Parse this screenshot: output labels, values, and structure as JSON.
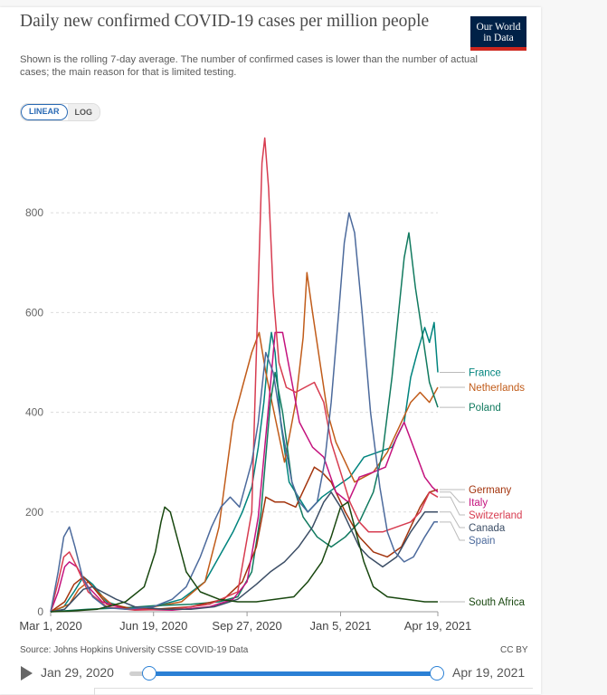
{
  "header": {
    "title": "Daily new confirmed COVID-19 cases per million people",
    "subtitle": "Shown is the rolling 7-day average. The number of confirmed cases is lower than the number of actual cases; the main reason for that is limited testing.",
    "logo_line1": "Our World",
    "logo_line2": "in Data"
  },
  "controls": {
    "linear_label": "LINEAR",
    "log_label": "LOG"
  },
  "footer": {
    "source": "Source: Johns Hopkins University CSSE COVID-19 Data",
    "license": "CC BY"
  },
  "timeline": {
    "start_label": "Jan 29, 2020",
    "end_label": "Apr 19, 2021",
    "range_start_fraction": 0.07,
    "range_end_fraction": 1.0
  },
  "colors": {
    "accent": "#2b80d5",
    "logo_bg": "#002147",
    "logo_bar": "#ce261e"
  },
  "chart_data": {
    "type": "line",
    "x_tick_labels": [
      "Mar 1, 2020",
      "Jun 19, 2020",
      "Sep 27, 2020",
      "Jan 5, 2021",
      "Apr 19, 2021"
    ],
    "x_tick_days": [
      0,
      110,
      210,
      310,
      414
    ],
    "y_tick_labels": [
      "0",
      "200",
      "400",
      "600",
      "800"
    ],
    "ylim": [
      0,
      960
    ],
    "xlim": [
      0,
      414
    ],
    "series": [
      {
        "name": "France",
        "color": "#00847e",
        "label_value": 480,
        "points": [
          [
            0,
            0
          ],
          [
            14,
            10
          ],
          [
            25,
            40
          ],
          [
            35,
            70
          ],
          [
            45,
            55
          ],
          [
            60,
            20
          ],
          [
            80,
            8
          ],
          [
            110,
            10
          ],
          [
            140,
            25
          ],
          [
            165,
            60
          ],
          [
            180,
            110
          ],
          [
            195,
            160
          ],
          [
            205,
            200
          ],
          [
            215,
            250
          ],
          [
            222,
            330
          ],
          [
            228,
            420
          ],
          [
            232,
            500
          ],
          [
            236,
            560
          ],
          [
            240,
            520
          ],
          [
            246,
            380
          ],
          [
            255,
            260
          ],
          [
            265,
            230
          ],
          [
            275,
            200
          ],
          [
            290,
            230
          ],
          [
            305,
            250
          ],
          [
            320,
            270
          ],
          [
            335,
            310
          ],
          [
            350,
            320
          ],
          [
            365,
            330
          ],
          [
            378,
            380
          ],
          [
            385,
            470
          ],
          [
            392,
            520
          ],
          [
            400,
            570
          ],
          [
            405,
            540
          ],
          [
            410,
            580
          ],
          [
            414,
            480
          ]
        ]
      },
      {
        "name": "Netherlands",
        "color": "#c15c1a",
        "label_value": 450,
        "points": [
          [
            0,
            0
          ],
          [
            20,
            15
          ],
          [
            30,
            45
          ],
          [
            40,
            60
          ],
          [
            50,
            40
          ],
          [
            65,
            15
          ],
          [
            90,
            5
          ],
          [
            110,
            10
          ],
          [
            140,
            20
          ],
          [
            165,
            60
          ],
          [
            180,
            170
          ],
          [
            195,
            380
          ],
          [
            205,
            450
          ],
          [
            215,
            520
          ],
          [
            223,
            560
          ],
          [
            230,
            480
          ],
          [
            240,
            390
          ],
          [
            250,
            300
          ],
          [
            262,
            420
          ],
          [
            270,
            550
          ],
          [
            274,
            680
          ],
          [
            280,
            600
          ],
          [
            288,
            500
          ],
          [
            296,
            400
          ],
          [
            305,
            340
          ],
          [
            315,
            300
          ],
          [
            325,
            260
          ],
          [
            335,
            270
          ],
          [
            345,
            280
          ],
          [
            360,
            320
          ],
          [
            375,
            380
          ],
          [
            385,
            420
          ],
          [
            395,
            440
          ],
          [
            405,
            420
          ],
          [
            414,
            450
          ]
        ]
      },
      {
        "name": "Poland",
        "color": "#117a5f",
        "label_value": 410,
        "points": [
          [
            0,
            0
          ],
          [
            40,
            5
          ],
          [
            80,
            8
          ],
          [
            110,
            12
          ],
          [
            150,
            15
          ],
          [
            180,
            20
          ],
          [
            200,
            30
          ],
          [
            215,
            80
          ],
          [
            225,
            200
          ],
          [
            235,
            420
          ],
          [
            240,
            480
          ],
          [
            248,
            400
          ],
          [
            258,
            260
          ],
          [
            270,
            190
          ],
          [
            285,
            150
          ],
          [
            300,
            130
          ],
          [
            315,
            150
          ],
          [
            330,
            180
          ],
          [
            345,
            240
          ],
          [
            355,
            320
          ],
          [
            365,
            470
          ],
          [
            372,
            600
          ],
          [
            378,
            710
          ],
          [
            383,
            760
          ],
          [
            390,
            650
          ],
          [
            398,
            550
          ],
          [
            405,
            460
          ],
          [
            414,
            410
          ]
        ]
      },
      {
        "name": "Germany",
        "color": "#a3340d",
        "label_value": 245,
        "points": [
          [
            0,
            0
          ],
          [
            15,
            20
          ],
          [
            25,
            55
          ],
          [
            35,
            70
          ],
          [
            45,
            50
          ],
          [
            60,
            15
          ],
          [
            90,
            5
          ],
          [
            110,
            5
          ],
          [
            150,
            10
          ],
          [
            185,
            25
          ],
          [
            205,
            60
          ],
          [
            220,
            130
          ],
          [
            230,
            230
          ],
          [
            240,
            220
          ],
          [
            250,
            220
          ],
          [
            262,
            210
          ],
          [
            272,
            250
          ],
          [
            282,
            290
          ],
          [
            290,
            280
          ],
          [
            300,
            260
          ],
          [
            315,
            200
          ],
          [
            330,
            150
          ],
          [
            345,
            120
          ],
          [
            360,
            110
          ],
          [
            375,
            130
          ],
          [
            385,
            170
          ],
          [
            395,
            210
          ],
          [
            405,
            240
          ],
          [
            414,
            245
          ]
        ]
      },
      {
        "name": "Italy",
        "color": "#c4137e",
        "label_value": 240,
        "points": [
          [
            0,
            0
          ],
          [
            8,
            40
          ],
          [
            15,
            90
          ],
          [
            20,
            100
          ],
          [
            28,
            90
          ],
          [
            40,
            50
          ],
          [
            55,
            20
          ],
          [
            80,
            5
          ],
          [
            130,
            3
          ],
          [
            170,
            10
          ],
          [
            195,
            25
          ],
          [
            210,
            60
          ],
          [
            222,
            190
          ],
          [
            232,
            390
          ],
          [
            240,
            560
          ],
          [
            248,
            560
          ],
          [
            256,
            480
          ],
          [
            266,
            380
          ],
          [
            280,
            330
          ],
          [
            292,
            310
          ],
          [
            305,
            240
          ],
          [
            318,
            220
          ],
          [
            330,
            270
          ],
          [
            345,
            280
          ],
          [
            358,
            290
          ],
          [
            370,
            350
          ],
          [
            378,
            380
          ],
          [
            390,
            320
          ],
          [
            400,
            270
          ],
          [
            408,
            250
          ],
          [
            414,
            240
          ]
        ]
      },
      {
        "name": "Switzerland",
        "color": "#d73c50",
        "label_value": 230,
        "points": [
          [
            0,
            0
          ],
          [
            8,
            60
          ],
          [
            14,
            110
          ],
          [
            20,
            120
          ],
          [
            28,
            90
          ],
          [
            40,
            40
          ],
          [
            60,
            10
          ],
          [
            90,
            3
          ],
          [
            130,
            5
          ],
          [
            170,
            15
          ],
          [
            200,
            40
          ],
          [
            215,
            200
          ],
          [
            222,
            650
          ],
          [
            226,
            900
          ],
          [
            229,
            950
          ],
          [
            233,
            850
          ],
          [
            238,
            640
          ],
          [
            244,
            500
          ],
          [
            252,
            450
          ],
          [
            262,
            440
          ],
          [
            272,
            450
          ],
          [
            282,
            460
          ],
          [
            292,
            420
          ],
          [
            300,
            340
          ],
          [
            310,
            280
          ],
          [
            320,
            220
          ],
          [
            330,
            180
          ],
          [
            340,
            160
          ],
          [
            355,
            160
          ],
          [
            370,
            170
          ],
          [
            385,
            180
          ],
          [
            395,
            200
          ],
          [
            405,
            240
          ],
          [
            414,
            230
          ]
        ]
      },
      {
        "name": "Canada",
        "color": "#3c4e66",
        "label_value": 200,
        "points": [
          [
            0,
            0
          ],
          [
            15,
            5
          ],
          [
            25,
            25
          ],
          [
            35,
            45
          ],
          [
            45,
            50
          ],
          [
            55,
            40
          ],
          [
            70,
            25
          ],
          [
            90,
            10
          ],
          [
            120,
            5
          ],
          [
            150,
            5
          ],
          [
            175,
            10
          ],
          [
            200,
            25
          ],
          [
            220,
            55
          ],
          [
            235,
            80
          ],
          [
            250,
            100
          ],
          [
            265,
            130
          ],
          [
            280,
            170
          ],
          [
            292,
            220
          ],
          [
            300,
            240
          ],
          [
            310,
            210
          ],
          [
            320,
            170
          ],
          [
            330,
            130
          ],
          [
            340,
            110
          ],
          [
            355,
            90
          ],
          [
            370,
            110
          ],
          [
            385,
            160
          ],
          [
            400,
            200
          ],
          [
            414,
            200
          ]
        ]
      },
      {
        "name": "Spain",
        "color": "#4c6a9c",
        "label_value": 180,
        "points": [
          [
            0,
            0
          ],
          [
            8,
            80
          ],
          [
            14,
            150
          ],
          [
            20,
            170
          ],
          [
            26,
            130
          ],
          [
            34,
            70
          ],
          [
            45,
            30
          ],
          [
            60,
            8
          ],
          [
            80,
            5
          ],
          [
            110,
            10
          ],
          [
            130,
            25
          ],
          [
            145,
            50
          ],
          [
            160,
            110
          ],
          [
            172,
            170
          ],
          [
            182,
            210
          ],
          [
            192,
            230
          ],
          [
            202,
            210
          ],
          [
            215,
            300
          ],
          [
            222,
            380
          ],
          [
            230,
            520
          ],
          [
            238,
            480
          ],
          [
            248,
            360
          ],
          [
            258,
            260
          ],
          [
            266,
            220
          ],
          [
            275,
            200
          ],
          [
            285,
            220
          ],
          [
            293,
            300
          ],
          [
            300,
            420
          ],
          [
            308,
            600
          ],
          [
            314,
            740
          ],
          [
            319,
            800
          ],
          [
            325,
            760
          ],
          [
            333,
            600
          ],
          [
            342,
            400
          ],
          [
            352,
            250
          ],
          [
            360,
            160
          ],
          [
            368,
            120
          ],
          [
            378,
            100
          ],
          [
            388,
            110
          ],
          [
            400,
            150
          ],
          [
            410,
            180
          ],
          [
            414,
            180
          ]
        ]
      },
      {
        "name": "South Africa",
        "color": "#18470f",
        "label_value": 20,
        "points": [
          [
            0,
            0
          ],
          [
            20,
            1
          ],
          [
            50,
            5
          ],
          [
            80,
            20
          ],
          [
            100,
            50
          ],
          [
            112,
            120
          ],
          [
            118,
            180
          ],
          [
            122,
            210
          ],
          [
            128,
            200
          ],
          [
            135,
            150
          ],
          [
            145,
            80
          ],
          [
            160,
            40
          ],
          [
            180,
            25
          ],
          [
            200,
            20
          ],
          [
            220,
            20
          ],
          [
            240,
            25
          ],
          [
            260,
            30
          ],
          [
            275,
            60
          ],
          [
            290,
            100
          ],
          [
            300,
            150
          ],
          [
            310,
            210
          ],
          [
            318,
            220
          ],
          [
            325,
            170
          ],
          [
            335,
            100
          ],
          [
            345,
            50
          ],
          [
            360,
            30
          ],
          [
            380,
            25
          ],
          [
            400,
            20
          ],
          [
            414,
            20
          ]
        ]
      }
    ]
  }
}
